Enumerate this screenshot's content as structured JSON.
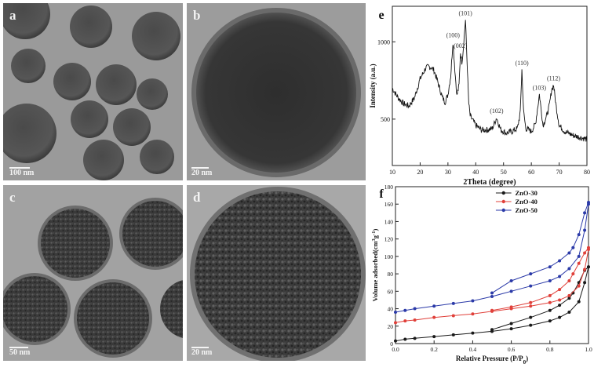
{
  "panels": {
    "a": {
      "label": "a",
      "scale": "100 nm"
    },
    "b": {
      "label": "b",
      "scale": "20 nm"
    },
    "c": {
      "label": "c",
      "scale": "50 nm"
    },
    "d": {
      "label": "d",
      "scale": "20 nm"
    }
  },
  "chart_data": [
    {
      "panel": "e",
      "type": "line",
      "xlabel": "2Theta (degree)",
      "ylabel": "Intensity (a.u.)",
      "xlim": [
        10,
        80
      ],
      "ylim": [
        200,
        1230
      ],
      "xticks": [
        10,
        20,
        30,
        40,
        50,
        60,
        70,
        80
      ],
      "yticks": [
        500,
        1000
      ],
      "color": "#111111",
      "x": [
        10,
        12,
        14,
        16,
        18,
        20,
        22,
        23,
        24,
        25,
        26,
        28,
        29,
        30,
        31,
        31.8,
        32.5,
        33.2,
        34,
        34.5,
        35,
        35.5,
        36.3,
        37,
        37.5,
        38,
        40,
        42,
        44,
        46,
        47.5,
        49,
        51,
        53,
        55,
        56,
        56.6,
        57.2,
        58,
        60,
        61.5,
        62.9,
        64.2,
        65.5,
        66.5,
        67.3,
        68,
        68.8,
        70,
        72,
        75,
        78,
        80
      ],
      "y": [
        700,
        640,
        600,
        585,
        640,
        760,
        830,
        840,
        835,
        815,
        760,
        640,
        610,
        660,
        780,
        1000,
        820,
        650,
        720,
        930,
        870,
        950,
        1140,
        820,
        600,
        520,
        460,
        430,
        430,
        440,
        510,
        430,
        410,
        420,
        440,
        540,
        820,
        550,
        440,
        420,
        470,
        660,
        460,
        520,
        590,
        690,
        720,
        600,
        460,
        420,
        395,
        380,
        370
      ],
      "annotations": [
        {
          "text": "(100)",
          "x": 31.8,
          "y": 1000
        },
        {
          "text": "(002)",
          "x": 34.5,
          "y": 930
        },
        {
          "text": "(101)",
          "x": 36.3,
          "y": 1140
        },
        {
          "text": "(102)",
          "x": 47.5,
          "y": 510
        },
        {
          "text": "(110)",
          "x": 56.6,
          "y": 820
        },
        {
          "text": "(103)",
          "x": 62.9,
          "y": 660
        },
        {
          "text": "(112)",
          "x": 68,
          "y": 720
        }
      ]
    },
    {
      "panel": "f",
      "type": "line",
      "xlabel": "Relative Pressure (P/P",
      "xlabel_sub": "0",
      "xlabel_end": ")",
      "ylabel": "Volume adsorbed(cm",
      "ylabel_sup1": "3",
      "ylabel_mid": "g",
      "ylabel_sup2": "-1",
      "ylabel_end": ")",
      "xlim": [
        0,
        1
      ],
      "ylim": [
        0,
        180
      ],
      "xticks": [
        0.0,
        0.2,
        0.4,
        0.6,
        0.8,
        1.0
      ],
      "yticks": [
        0,
        20,
        40,
        60,
        80,
        100,
        120,
        140,
        160,
        180
      ],
      "legend_position": "top-left",
      "series": [
        {
          "name": "ZnO-30",
          "color": "#1a1a1a",
          "adsorption": {
            "x": [
              0.0,
              0.05,
              0.1,
              0.2,
              0.3,
              0.4,
              0.5,
              0.6,
              0.7,
              0.8,
              0.85,
              0.9,
              0.95,
              0.98,
              1.0
            ],
            "y": [
              3,
              5,
              6,
              8,
              10,
              12,
              14,
              17,
              21,
              26,
              30,
              36,
              48,
              70,
              88
            ]
          },
          "desorption": {
            "x": [
              1.0,
              0.98,
              0.95,
              0.92,
              0.9,
              0.85,
              0.8,
              0.7,
              0.6,
              0.5
            ],
            "y": [
              88,
              84,
              70,
              58,
              52,
              44,
              38,
              30,
              23,
              16
            ]
          }
        },
        {
          "name": "ZnO-40",
          "color": "#e0403a",
          "adsorption": {
            "x": [
              0.0,
              0.05,
              0.1,
              0.2,
              0.3,
              0.4,
              0.5,
              0.6,
              0.7,
              0.8,
              0.85,
              0.9,
              0.95,
              0.98,
              1.0
            ],
            "y": [
              24,
              26,
              27,
              30,
              32,
              34,
              37,
              40,
              43,
              47,
              50,
              55,
              66,
              85,
              108
            ]
          },
          "desorption": {
            "x": [
              1.0,
              0.98,
              0.95,
              0.92,
              0.9,
              0.85,
              0.8,
              0.7,
              0.6,
              0.5
            ],
            "y": [
              110,
              104,
              92,
              80,
              72,
              62,
              55,
              47,
              42,
              38
            ]
          }
        },
        {
          "name": "ZnO-50",
          "color": "#2b3aa8",
          "adsorption": {
            "x": [
              0.0,
              0.05,
              0.1,
              0.2,
              0.3,
              0.4,
              0.5,
              0.6,
              0.7,
              0.8,
              0.85,
              0.9,
              0.95,
              0.98,
              1.0
            ],
            "y": [
              36,
              38,
              40,
              43,
              46,
              49,
              54,
              60,
              66,
              72,
              77,
              86,
              100,
              130,
              160
            ]
          },
          "desorption": {
            "x": [
              1.0,
              0.98,
              0.95,
              0.92,
              0.9,
              0.85,
              0.8,
              0.7,
              0.6,
              0.5
            ],
            "y": [
              162,
              150,
              125,
              110,
              104,
              95,
              88,
              80,
              72,
              58
            ]
          }
        }
      ]
    }
  ]
}
